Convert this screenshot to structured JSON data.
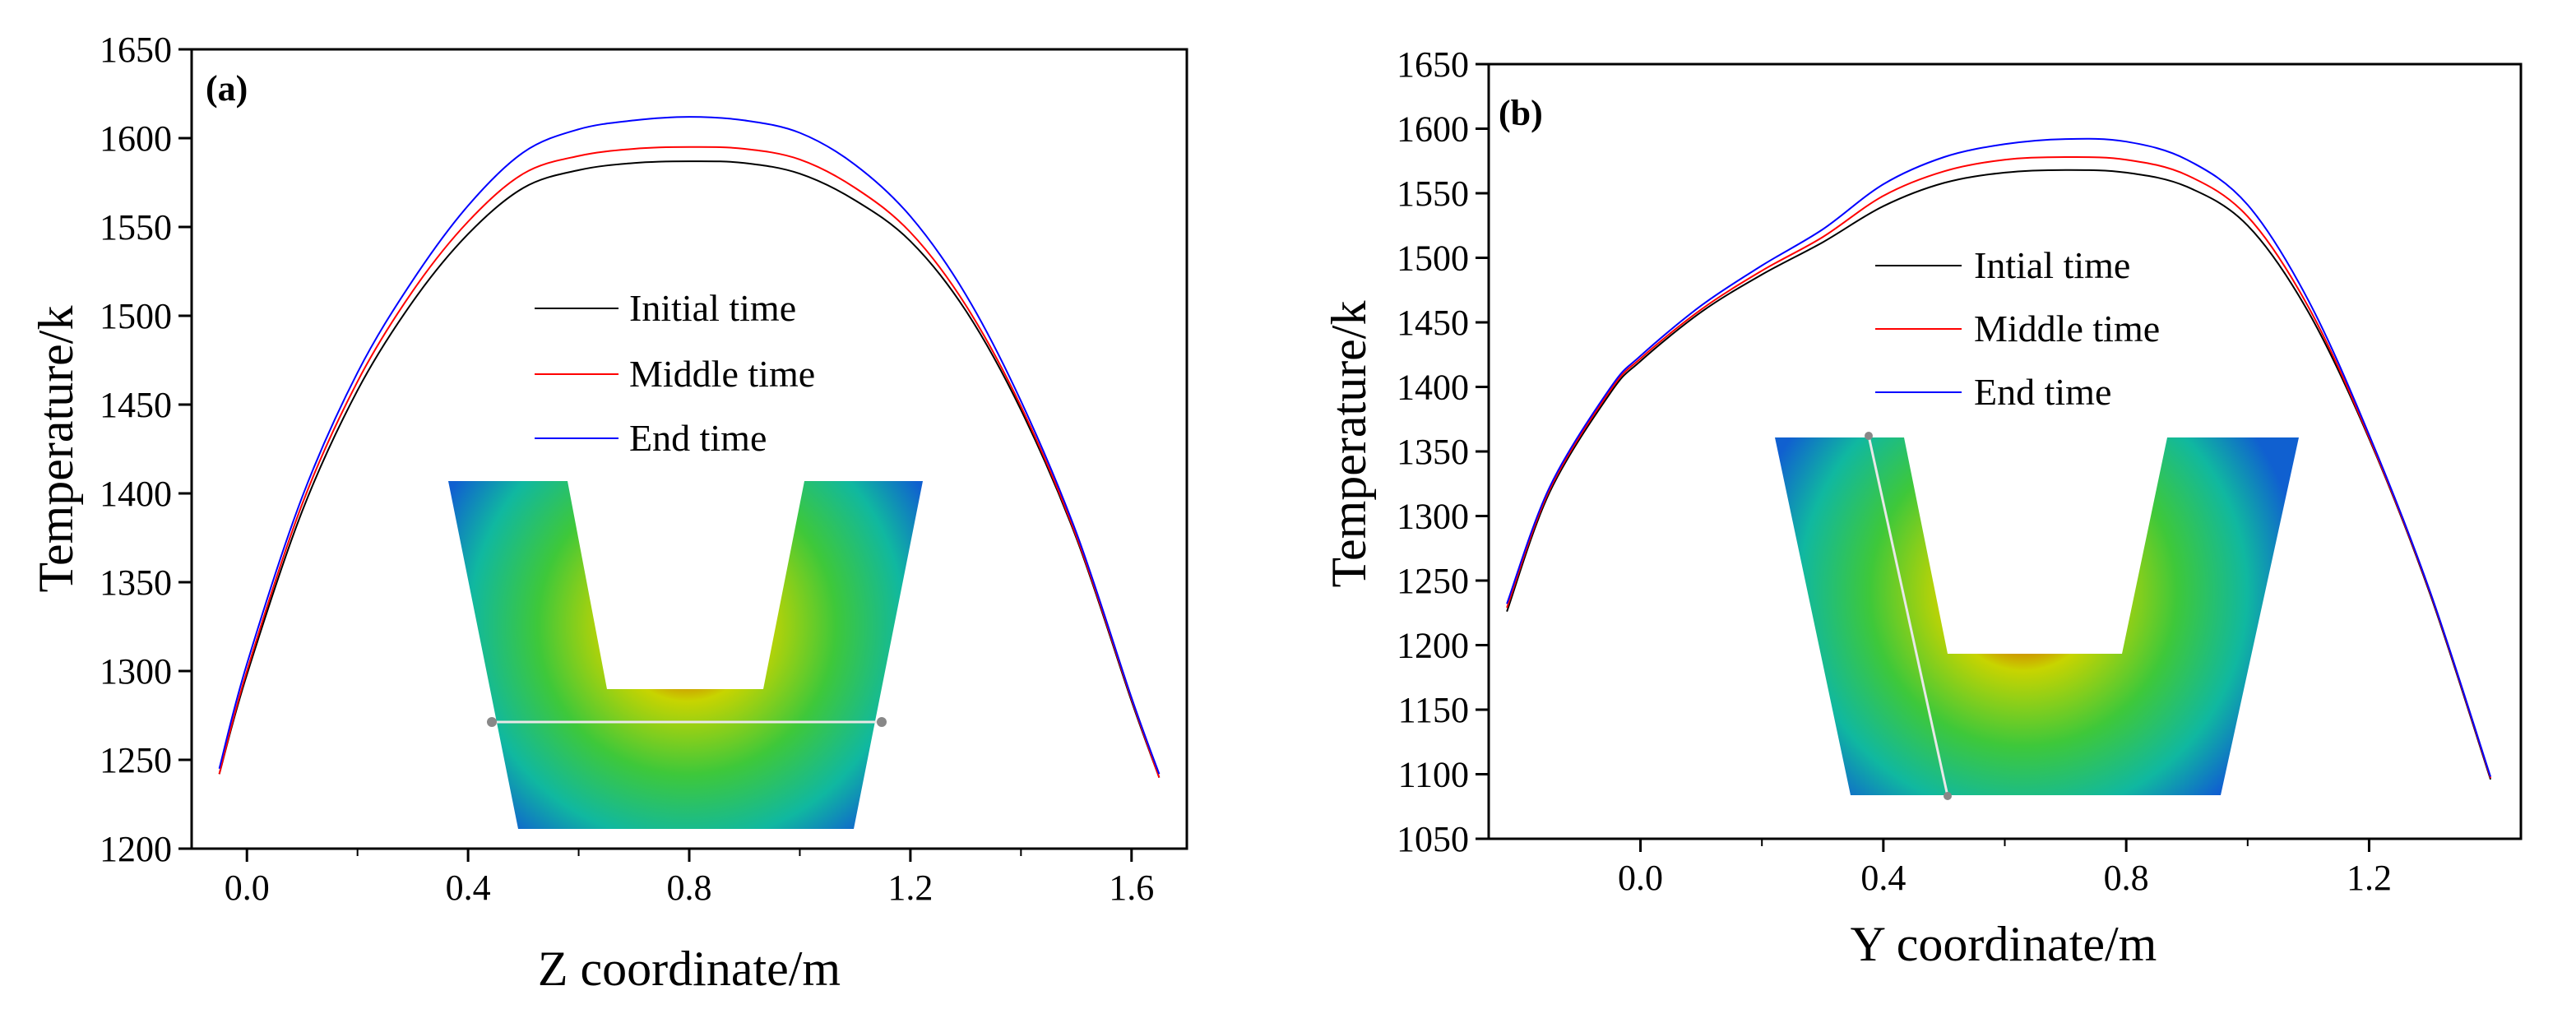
{
  "chart_data": [
    {
      "type": "line",
      "panel_label": "(a)",
      "xlabel": "Z coordinate/m",
      "ylabel": "Temperature/k",
      "xlim": [
        -0.1,
        1.7
      ],
      "ylim": [
        1200,
        1650
      ],
      "xticks": [
        0.0,
        0.4,
        0.8,
        1.2,
        1.6
      ],
      "xtick_labels": [
        "0.0",
        "0.4",
        "0.8",
        "1.2",
        "1.6"
      ],
      "yticks": [
        1200,
        1250,
        1300,
        1350,
        1400,
        1450,
        1500,
        1550,
        1600,
        1650
      ],
      "ytick_labels": [
        "1200",
        "1250",
        "1300",
        "1350",
        "1400",
        "1450",
        "1500",
        "1550",
        "1600",
        "1650"
      ],
      "legend_position": "center",
      "inset": "U-shaped ladle cross-section temperature field, horizontal sampling line",
      "x": [
        -0.05,
        0.0,
        0.1,
        0.2,
        0.3,
        0.4,
        0.5,
        0.6,
        0.7,
        0.8,
        0.9,
        1.0,
        1.1,
        1.2,
        1.3,
        1.4,
        1.5,
        1.6,
        1.65
      ],
      "series": [
        {
          "name": "Initial time",
          "color": "#000000",
          "values": [
            1242,
            1298,
            1390,
            1458,
            1508,
            1546,
            1572,
            1582,
            1586,
            1587,
            1586,
            1580,
            1565,
            1542,
            1503,
            1447,
            1375,
            1283,
            1240
          ]
        },
        {
          "name": "Middle time",
          "color": "#ff0000",
          "values": [
            1242,
            1300,
            1394,
            1463,
            1514,
            1553,
            1580,
            1590,
            1594,
            1595,
            1594,
            1588,
            1572,
            1547,
            1506,
            1449,
            1376,
            1284,
            1240
          ]
        },
        {
          "name": "End time",
          "color": "#0000ff",
          "values": [
            1245,
            1304,
            1398,
            1468,
            1520,
            1562,
            1592,
            1605,
            1610,
            1612,
            1610,
            1603,
            1585,
            1556,
            1512,
            1452,
            1378,
            1285,
            1242
          ]
        }
      ]
    },
    {
      "type": "line",
      "panel_label": "(b)",
      "xlabel": "Y coordinate/m",
      "ylabel": "Temperature/k",
      "xlim": [
        -0.25,
        1.45
      ],
      "ylim": [
        1050,
        1650
      ],
      "xticks": [
        0.0,
        0.4,
        0.8,
        1.2
      ],
      "xtick_labels": [
        "0.0",
        "0.4",
        "0.8",
        "1.2"
      ],
      "yticks": [
        1050,
        1100,
        1150,
        1200,
        1250,
        1300,
        1350,
        1400,
        1450,
        1500,
        1550,
        1600,
        1650
      ],
      "ytick_labels": [
        "1050",
        "1100",
        "1150",
        "1200",
        "1250",
        "1300",
        "1350",
        "1400",
        "1450",
        "1500",
        "1550",
        "1600",
        "1650"
      ],
      "legend_position": "center",
      "inset": "U-shaped ladle cross-section temperature field, slanted sampling line",
      "x": [
        -0.22,
        -0.15,
        -0.05,
        0.0,
        0.1,
        0.2,
        0.3,
        0.4,
        0.5,
        0.6,
        0.7,
        0.8,
        0.9,
        1.0,
        1.1,
        1.2,
        1.3,
        1.4
      ],
      "series": [
        {
          "name": "Intial time",
          "color": "#000000",
          "values": [
            1226,
            1318,
            1395,
            1420,
            1458,
            1487,
            1512,
            1540,
            1558,
            1566,
            1568,
            1566,
            1555,
            1525,
            1458,
            1360,
            1240,
            1096
          ]
        },
        {
          "name": "Middle time",
          "color": "#ff0000",
          "values": [
            1229,
            1320,
            1397,
            1422,
            1460,
            1490,
            1516,
            1548,
            1567,
            1576,
            1578,
            1576,
            1564,
            1532,
            1462,
            1361,
            1241,
            1097
          ]
        },
        {
          "name": "End time",
          "color": "#0000ff",
          "values": [
            1232,
            1322,
            1399,
            1424,
            1463,
            1494,
            1522,
            1557,
            1578,
            1588,
            1592,
            1590,
            1576,
            1541,
            1467,
            1363,
            1242,
            1098
          ]
        }
      ]
    }
  ]
}
